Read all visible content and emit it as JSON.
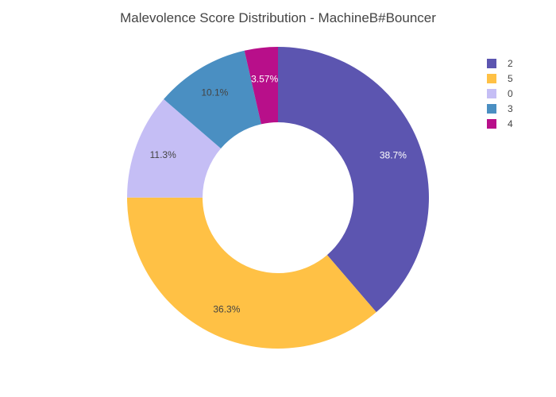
{
  "chart_data": {
    "type": "pie",
    "hole": 0.5,
    "title": "Malevolence Score Distribution - MachineB#Bouncer",
    "slices": [
      {
        "label": "2",
        "value": 38.7,
        "text": "38.7%",
        "color": "#5c55b0",
        "text_color": "#ffffff"
      },
      {
        "label": "5",
        "value": 36.3,
        "text": "36.3%",
        "color": "#ffc145",
        "text_color": "#444444"
      },
      {
        "label": "0",
        "value": 11.3,
        "text": "11.3%",
        "color": "#c5bef5",
        "text_color": "#444444"
      },
      {
        "label": "3",
        "value": 10.1,
        "text": "10.1%",
        "color": "#4a8fc2",
        "text_color": "#444444"
      },
      {
        "label": "4",
        "value": 3.57,
        "text": "3.57%",
        "color": "#b80f8a",
        "text_color": "#ffffff"
      }
    ],
    "direction": "clockwise",
    "legend": "top-right"
  }
}
